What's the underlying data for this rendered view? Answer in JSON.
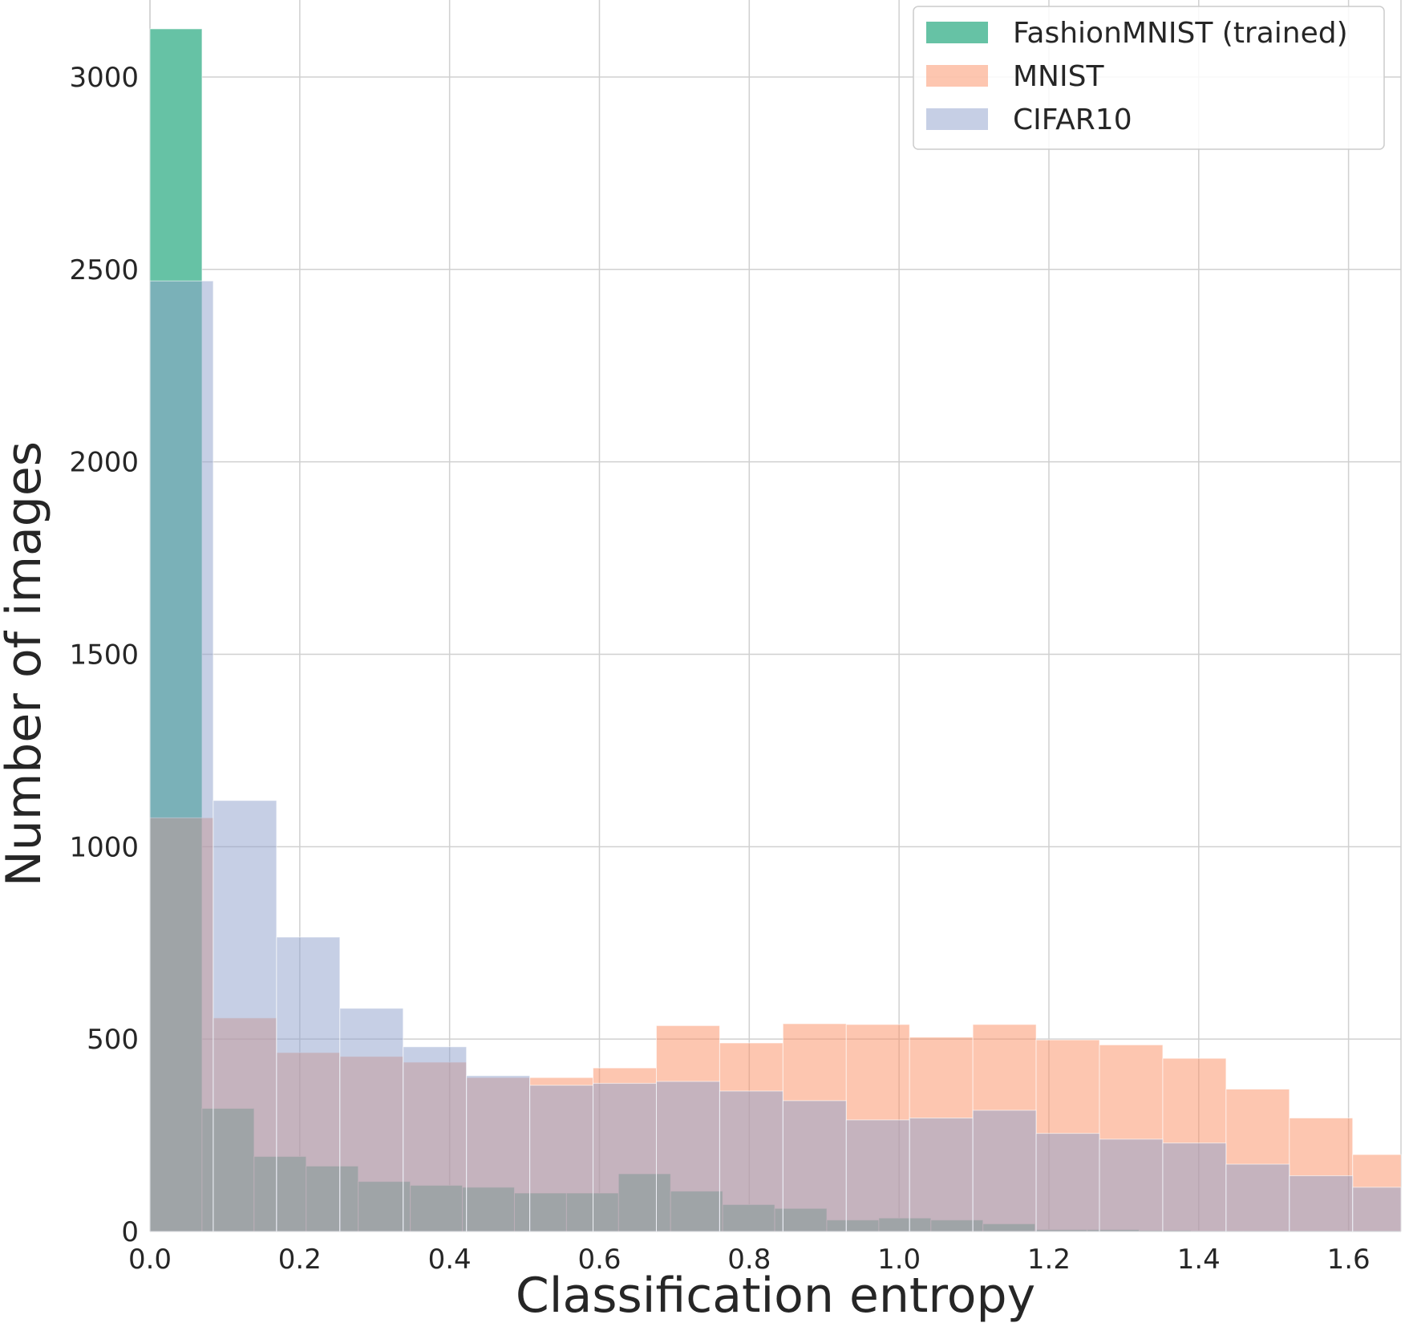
{
  "chart_data": {
    "type": "histogram",
    "title": "",
    "xlabel": "Classification entropy",
    "ylabel": "Number of images",
    "xlim": [
      0.0,
      1.67
    ],
    "ylim": [
      0,
      3200
    ],
    "xticks": [
      0.0,
      0.2,
      0.4,
      0.6,
      0.8,
      1.0,
      1.2,
      1.4,
      1.6
    ],
    "xtick_labels": [
      "0.0",
      "0.2",
      "0.4",
      "0.6",
      "0.8",
      "1.0",
      "1.2",
      "1.4",
      "1.6"
    ],
    "yticks": [
      0,
      500,
      1000,
      1500,
      2000,
      2500,
      3000
    ],
    "ytick_labels": [
      "0",
      "500",
      "1000",
      "1500",
      "2000",
      "2500",
      "3000"
    ],
    "grid": true,
    "legend_position": "top-right",
    "series": [
      {
        "name": "FashionMNIST (trained)",
        "color": "#66c2a5",
        "opacity": 1.0,
        "bin_edges": [
          0.0,
          0.0695,
          0.139,
          0.2085,
          0.278,
          0.3475,
          0.417,
          0.4865,
          0.556,
          0.6255,
          0.695,
          0.7645,
          0.834,
          0.9035,
          0.973,
          1.0425,
          1.112,
          1.1815,
          1.251,
          1.3205,
          1.39,
          1.4595,
          1.529,
          1.5985,
          1.668
        ],
        "counts": [
          3125,
          320,
          195,
          170,
          130,
          120,
          115,
          100,
          100,
          150,
          105,
          70,
          60,
          30,
          35,
          30,
          20,
          5,
          5,
          3,
          2,
          2,
          2,
          2
        ]
      },
      {
        "name": "MNIST",
        "color": "#fc8d62",
        "opacity": 0.5,
        "bin_edges": [
          0.0,
          0.0845,
          0.169,
          0.2535,
          0.338,
          0.4225,
          0.507,
          0.5915,
          0.676,
          0.7605,
          0.845,
          0.9295,
          1.014,
          1.0985,
          1.183,
          1.2675,
          1.352,
          1.4365,
          1.521,
          1.6055,
          1.69
        ],
        "counts": [
          1075,
          555,
          465,
          455,
          440,
          400,
          400,
          425,
          535,
          490,
          540,
          538,
          505,
          538,
          498,
          485,
          450,
          370,
          295,
          200
        ]
      },
      {
        "name": "CIFAR10",
        "color": "#8da0cb",
        "opacity": 0.5,
        "bin_edges": [
          0.0,
          0.0845,
          0.169,
          0.2535,
          0.338,
          0.4225,
          0.507,
          0.5915,
          0.676,
          0.7605,
          0.845,
          0.9295,
          1.014,
          1.0985,
          1.183,
          1.2675,
          1.352,
          1.4365,
          1.521,
          1.6055,
          1.69
        ],
        "counts": [
          2470,
          1120,
          765,
          580,
          480,
          405,
          380,
          385,
          390,
          365,
          340,
          290,
          295,
          315,
          255,
          240,
          230,
          175,
          145,
          115
        ]
      }
    ]
  }
}
